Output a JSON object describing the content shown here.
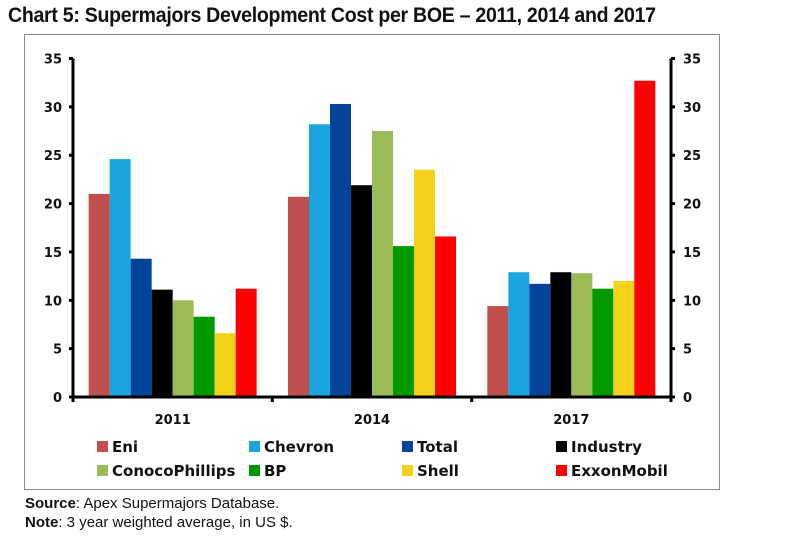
{
  "chart_data": {
    "type": "bar",
    "title": "Chart 5: Supermajors Development Cost per BOE – 2011, 2014 and 2017",
    "xlabel": "",
    "ylabel": "",
    "ylim": [
      0,
      35
    ],
    "yticks": [
      0,
      5,
      10,
      15,
      20,
      25,
      30,
      35
    ],
    "ytick_labels": [
      "0",
      "5",
      "10",
      "15",
      "20",
      "25",
      "30",
      "35"
    ],
    "secondary_y_axis": true,
    "grid": false,
    "legend_position": "bottom",
    "categories": [
      "2011",
      "2014",
      "2017"
    ],
    "series": [
      {
        "name": "Eni",
        "color": "#C0504D",
        "values": [
          21.0,
          20.7,
          9.4
        ]
      },
      {
        "name": "Chevron",
        "color": "#1BA5DE",
        "values": [
          24.6,
          28.2,
          12.9
        ]
      },
      {
        "name": "Total",
        "color": "#034399",
        "values": [
          14.3,
          30.3,
          11.7
        ]
      },
      {
        "name": "Industry",
        "color": "#000000",
        "values": [
          11.1,
          21.9,
          12.9
        ]
      },
      {
        "name": "ConocoPhillips",
        "color": "#9BBB59",
        "values": [
          10.0,
          27.5,
          12.8
        ]
      },
      {
        "name": "BP",
        "color": "#009900",
        "values": [
          8.3,
          15.6,
          11.2
        ]
      },
      {
        "name": "Shell",
        "color": "#F5D21A",
        "values": [
          6.6,
          23.5,
          12.0
        ]
      },
      {
        "name": "ExxonMobil",
        "color": "#FF0000",
        "values": [
          11.2,
          16.6,
          32.7
        ]
      }
    ]
  },
  "footer": {
    "source_label": "Source",
    "source_text": ": Apex Supermajors Database.",
    "note_label": "Note",
    "note_text": ": 3 year weighted average, in US $."
  }
}
